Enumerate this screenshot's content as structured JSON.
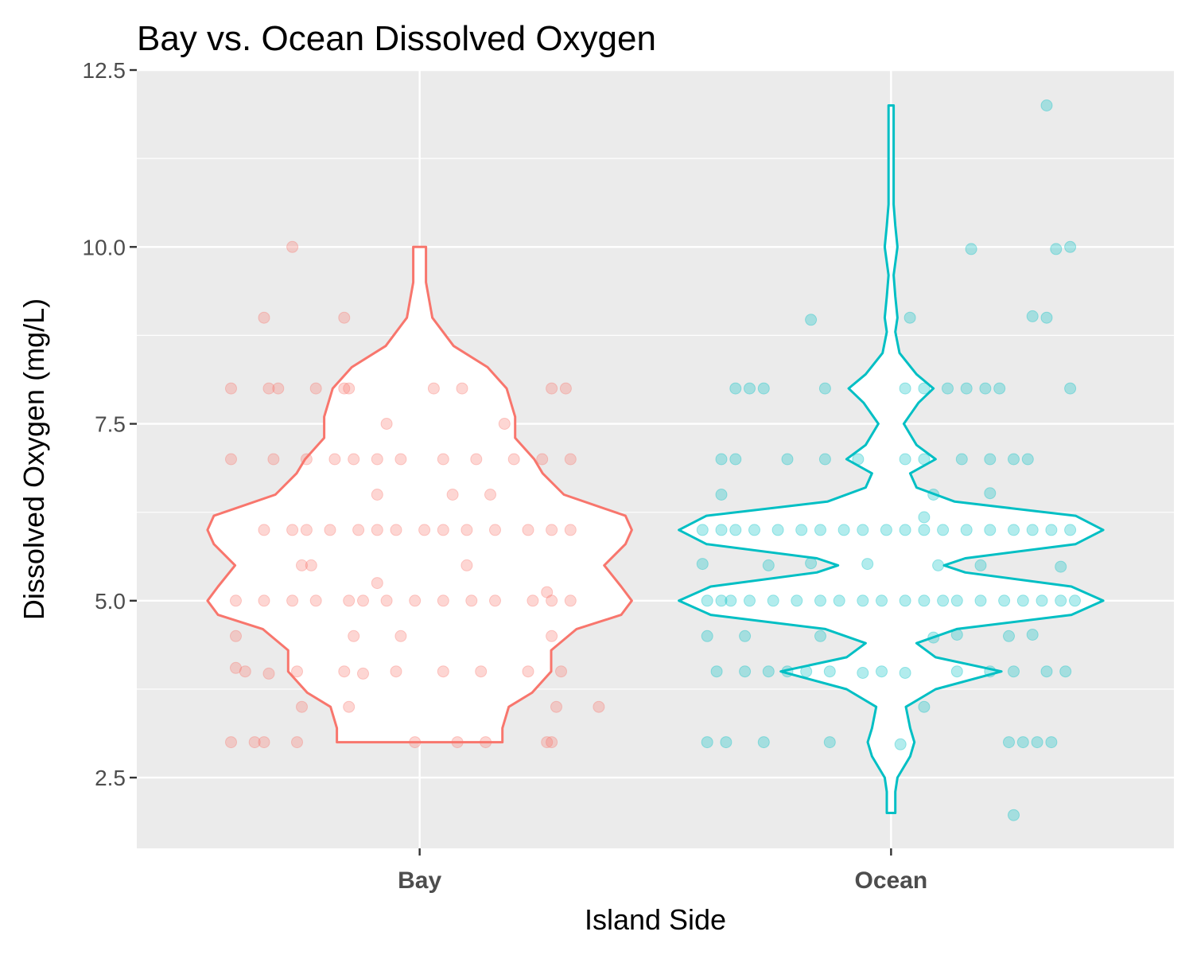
{
  "chart_data": {
    "type": "violin",
    "title": "Bay vs. Ocean Dissolved Oxygen",
    "xlabel": "Island Side",
    "ylabel": "Dissolved Oxygen (mg/L)",
    "categories": [
      "Bay",
      "Ocean"
    ],
    "ylim": [
      1.5,
      12.5
    ],
    "yticks": [
      2.5,
      5.0,
      7.5,
      10.0,
      12.5
    ],
    "ytick_labels": [
      "2.5",
      "5.0",
      "7.5",
      "10.0",
      "12.5"
    ],
    "grid": true,
    "colors": {
      "Bay": "#F8766D",
      "Ocean": "#00BFC4",
      "panel": "#EBEBEB",
      "grid": "#FFFFFF"
    },
    "point_alpha": 0.3,
    "series": [
      {
        "name": "Bay",
        "violin_range": [
          3.0,
          10.0
        ],
        "violin_density": [
          [
            3.0,
            0.39
          ],
          [
            3.2,
            0.39
          ],
          [
            3.5,
            0.42
          ],
          [
            3.7,
            0.53
          ],
          [
            4.0,
            0.62
          ],
          [
            4.3,
            0.62
          ],
          [
            4.6,
            0.74
          ],
          [
            4.8,
            0.95
          ],
          [
            5.0,
            1.0
          ],
          [
            5.2,
            0.95
          ],
          [
            5.5,
            0.87
          ],
          [
            5.8,
            0.97
          ],
          [
            6.0,
            1.0
          ],
          [
            6.2,
            0.97
          ],
          [
            6.5,
            0.68
          ],
          [
            6.8,
            0.58
          ],
          [
            7.0,
            0.54
          ],
          [
            7.3,
            0.45
          ],
          [
            7.6,
            0.45
          ],
          [
            8.0,
            0.41
          ],
          [
            8.3,
            0.32
          ],
          [
            8.6,
            0.16
          ],
          [
            9.0,
            0.06
          ],
          [
            9.5,
            0.03
          ],
          [
            10.0,
            0.03
          ]
        ],
        "points": [
          {
            "x": -0.4,
            "y": 3.0
          },
          {
            "x": -0.35,
            "y": 3.0
          },
          {
            "x": -0.33,
            "y": 3.0
          },
          {
            "x": -0.26,
            "y": 3.0
          },
          {
            "x": -0.01,
            "y": 3.0
          },
          {
            "x": 0.08,
            "y": 3.0
          },
          {
            "x": 0.14,
            "y": 3.0
          },
          {
            "x": 0.27,
            "y": 3.0
          },
          {
            "x": 0.28,
            "y": 3.0
          },
          {
            "x": -0.39,
            "y": 4.05
          },
          {
            "x": -0.37,
            "y": 4.0
          },
          {
            "x": -0.32,
            "y": 3.97
          },
          {
            "x": -0.26,
            "y": 4.0
          },
          {
            "x": -0.16,
            "y": 4.0
          },
          {
            "x": -0.12,
            "y": 3.97
          },
          {
            "x": -0.05,
            "y": 4.0
          },
          {
            "x": 0.05,
            "y": 4.0
          },
          {
            "x": 0.13,
            "y": 4.0
          },
          {
            "x": 0.23,
            "y": 4.0
          },
          {
            "x": 0.3,
            "y": 4.0
          },
          {
            "x": -0.39,
            "y": 5.0
          },
          {
            "x": -0.33,
            "y": 5.0
          },
          {
            "x": -0.27,
            "y": 5.0
          },
          {
            "x": -0.22,
            "y": 5.0
          },
          {
            "x": -0.15,
            "y": 5.0
          },
          {
            "x": -0.12,
            "y": 5.0
          },
          {
            "x": -0.07,
            "y": 5.0
          },
          {
            "x": -0.01,
            "y": 5.0
          },
          {
            "x": 0.05,
            "y": 5.0
          },
          {
            "x": 0.11,
            "y": 5.0
          },
          {
            "x": 0.16,
            "y": 5.0
          },
          {
            "x": 0.24,
            "y": 5.0
          },
          {
            "x": 0.28,
            "y": 5.0
          },
          {
            "x": 0.32,
            "y": 5.0
          },
          {
            "x": -0.33,
            "y": 6.0
          },
          {
            "x": -0.27,
            "y": 6.0
          },
          {
            "x": -0.24,
            "y": 6.0
          },
          {
            "x": -0.19,
            "y": 6.0
          },
          {
            "x": -0.13,
            "y": 6.0
          },
          {
            "x": -0.09,
            "y": 6.0
          },
          {
            "x": -0.05,
            "y": 6.0
          },
          {
            "x": 0.01,
            "y": 6.0
          },
          {
            "x": 0.05,
            "y": 6.0
          },
          {
            "x": 0.1,
            "y": 6.0
          },
          {
            "x": 0.16,
            "y": 6.0
          },
          {
            "x": 0.23,
            "y": 6.0
          },
          {
            "x": 0.28,
            "y": 6.0
          },
          {
            "x": 0.32,
            "y": 6.0
          },
          {
            "x": -0.4,
            "y": 7.0
          },
          {
            "x": -0.31,
            "y": 7.0
          },
          {
            "x": -0.24,
            "y": 7.0
          },
          {
            "x": -0.18,
            "y": 7.0
          },
          {
            "x": -0.14,
            "y": 7.0
          },
          {
            "x": -0.09,
            "y": 7.0
          },
          {
            "x": -0.04,
            "y": 7.0
          },
          {
            "x": 0.05,
            "y": 7.0
          },
          {
            "x": 0.12,
            "y": 7.0
          },
          {
            "x": 0.2,
            "y": 7.0
          },
          {
            "x": 0.26,
            "y": 7.0
          },
          {
            "x": 0.32,
            "y": 7.0
          },
          {
            "x": -0.4,
            "y": 8.0
          },
          {
            "x": -0.32,
            "y": 8.0
          },
          {
            "x": -0.3,
            "y": 8.0
          },
          {
            "x": -0.22,
            "y": 8.0
          },
          {
            "x": -0.16,
            "y": 8.0
          },
          {
            "x": -0.15,
            "y": 8.0
          },
          {
            "x": 0.03,
            "y": 8.0
          },
          {
            "x": 0.09,
            "y": 8.0
          },
          {
            "x": 0.28,
            "y": 8.0
          },
          {
            "x": 0.31,
            "y": 8.0
          },
          {
            "x": -0.33,
            "y": 9.0
          },
          {
            "x": -0.16,
            "y": 9.0
          },
          {
            "x": -0.27,
            "y": 10.0
          },
          {
            "x": -0.25,
            "y": 3.5
          },
          {
            "x": -0.15,
            "y": 3.5
          },
          {
            "x": 0.29,
            "y": 3.5
          },
          {
            "x": 0.38,
            "y": 3.5
          },
          {
            "x": -0.39,
            "y": 4.5
          },
          {
            "x": -0.14,
            "y": 4.5
          },
          {
            "x": -0.04,
            "y": 4.5
          },
          {
            "x": 0.28,
            "y": 4.5
          },
          {
            "x": -0.25,
            "y": 5.5
          },
          {
            "x": -0.23,
            "y": 5.5
          },
          {
            "x": 0.1,
            "y": 5.5
          },
          {
            "x": -0.09,
            "y": 6.5
          },
          {
            "x": 0.07,
            "y": 6.5
          },
          {
            "x": 0.15,
            "y": 6.5
          },
          {
            "x": -0.07,
            "y": 7.5
          },
          {
            "x": 0.18,
            "y": 7.5
          },
          {
            "x": -0.09,
            "y": 5.25
          },
          {
            "x": 0.27,
            "y": 5.12
          }
        ]
      },
      {
        "name": "Ocean",
        "violin_range": [
          2.0,
          12.0
        ],
        "violin_density": [
          [
            2.0,
            0.02
          ],
          [
            2.3,
            0.02
          ],
          [
            2.5,
            0.03
          ],
          [
            2.8,
            0.09
          ],
          [
            3.0,
            0.11
          ],
          [
            3.2,
            0.09
          ],
          [
            3.5,
            0.07
          ],
          [
            3.75,
            0.21
          ],
          [
            4.0,
            0.52
          ],
          [
            4.2,
            0.21
          ],
          [
            4.4,
            0.12
          ],
          [
            4.6,
            0.31
          ],
          [
            4.8,
            0.85
          ],
          [
            5.0,
            1.0
          ],
          [
            5.2,
            0.85
          ],
          [
            5.4,
            0.35
          ],
          [
            5.5,
            0.25
          ],
          [
            5.6,
            0.35
          ],
          [
            5.8,
            0.87
          ],
          [
            6.0,
            1.0
          ],
          [
            6.2,
            0.87
          ],
          [
            6.4,
            0.3
          ],
          [
            6.6,
            0.12
          ],
          [
            6.8,
            0.09
          ],
          [
            7.0,
            0.21
          ],
          [
            7.2,
            0.12
          ],
          [
            7.5,
            0.06
          ],
          [
            7.8,
            0.13
          ],
          [
            8.0,
            0.2
          ],
          [
            8.2,
            0.12
          ],
          [
            8.5,
            0.04
          ],
          [
            8.8,
            0.02
          ],
          [
            9.0,
            0.03
          ],
          [
            9.3,
            0.02
          ],
          [
            9.6,
            0.01
          ],
          [
            10.0,
            0.03
          ],
          [
            10.3,
            0.02
          ],
          [
            10.6,
            0.01
          ],
          [
            11.0,
            0.01
          ],
          [
            11.5,
            0.01
          ],
          [
            12.0,
            0.01
          ]
        ],
        "points": [
          {
            "x": -0.39,
            "y": 3.0
          },
          {
            "x": -0.35,
            "y": 3.0
          },
          {
            "x": -0.27,
            "y": 3.0
          },
          {
            "x": -0.13,
            "y": 3.0
          },
          {
            "x": 0.02,
            "y": 2.97
          },
          {
            "x": 0.25,
            "y": 3.0
          },
          {
            "x": 0.28,
            "y": 3.0
          },
          {
            "x": 0.31,
            "y": 3.0
          },
          {
            "x": 0.34,
            "y": 3.0
          },
          {
            "x": -0.37,
            "y": 4.0
          },
          {
            "x": -0.31,
            "y": 4.0
          },
          {
            "x": -0.26,
            "y": 4.0
          },
          {
            "x": -0.22,
            "y": 4.0
          },
          {
            "x": -0.18,
            "y": 4.0
          },
          {
            "x": -0.13,
            "y": 4.0
          },
          {
            "x": -0.06,
            "y": 3.98
          },
          {
            "x": -0.02,
            "y": 4.0
          },
          {
            "x": 0.03,
            "y": 3.98
          },
          {
            "x": 0.14,
            "y": 4.0
          },
          {
            "x": 0.21,
            "y": 4.0
          },
          {
            "x": 0.26,
            "y": 4.0
          },
          {
            "x": 0.33,
            "y": 4.0
          },
          {
            "x": 0.37,
            "y": 4.0
          },
          {
            "x": -0.39,
            "y": 5.0
          },
          {
            "x": -0.36,
            "y": 5.0
          },
          {
            "x": -0.34,
            "y": 5.0
          },
          {
            "x": -0.3,
            "y": 5.0
          },
          {
            "x": -0.25,
            "y": 5.0
          },
          {
            "x": -0.2,
            "y": 5.0
          },
          {
            "x": -0.15,
            "y": 5.0
          },
          {
            "x": -0.11,
            "y": 5.0
          },
          {
            "x": -0.06,
            "y": 5.0
          },
          {
            "x": -0.02,
            "y": 5.0
          },
          {
            "x": 0.03,
            "y": 5.0
          },
          {
            "x": 0.07,
            "y": 5.0
          },
          {
            "x": 0.11,
            "y": 5.0
          },
          {
            "x": 0.14,
            "y": 5.0
          },
          {
            "x": 0.19,
            "y": 5.0
          },
          {
            "x": 0.24,
            "y": 5.0
          },
          {
            "x": 0.28,
            "y": 5.0
          },
          {
            "x": 0.32,
            "y": 5.0
          },
          {
            "x": 0.36,
            "y": 5.0
          },
          {
            "x": 0.39,
            "y": 5.0
          },
          {
            "x": -0.4,
            "y": 6.0
          },
          {
            "x": -0.36,
            "y": 6.0
          },
          {
            "x": -0.33,
            "y": 6.0
          },
          {
            "x": -0.29,
            "y": 6.0
          },
          {
            "x": -0.24,
            "y": 6.0
          },
          {
            "x": -0.19,
            "y": 6.0
          },
          {
            "x": -0.15,
            "y": 6.0
          },
          {
            "x": -0.1,
            "y": 6.0
          },
          {
            "x": -0.06,
            "y": 6.0
          },
          {
            "x": -0.01,
            "y": 6.0
          },
          {
            "x": 0.03,
            "y": 6.0
          },
          {
            "x": 0.07,
            "y": 6.0
          },
          {
            "x": 0.11,
            "y": 6.0
          },
          {
            "x": 0.16,
            "y": 6.0
          },
          {
            "x": 0.21,
            "y": 6.0
          },
          {
            "x": 0.26,
            "y": 6.0
          },
          {
            "x": 0.3,
            "y": 6.0
          },
          {
            "x": 0.34,
            "y": 6.0
          },
          {
            "x": 0.38,
            "y": 6.0
          },
          {
            "x": -0.36,
            "y": 7.0
          },
          {
            "x": -0.33,
            "y": 7.0
          },
          {
            "x": -0.22,
            "y": 7.0
          },
          {
            "x": -0.14,
            "y": 7.0
          },
          {
            "x": -0.07,
            "y": 7.0
          },
          {
            "x": 0.03,
            "y": 7.0
          },
          {
            "x": 0.07,
            "y": 7.0
          },
          {
            "x": 0.15,
            "y": 7.0
          },
          {
            "x": 0.21,
            "y": 7.0
          },
          {
            "x": 0.26,
            "y": 7.0
          },
          {
            "x": 0.29,
            "y": 7.0
          },
          {
            "x": -0.33,
            "y": 8.0
          },
          {
            "x": -0.3,
            "y": 8.0
          },
          {
            "x": -0.27,
            "y": 8.0
          },
          {
            "x": -0.14,
            "y": 8.0
          },
          {
            "x": 0.03,
            "y": 8.0
          },
          {
            "x": 0.07,
            "y": 8.0
          },
          {
            "x": 0.12,
            "y": 8.0
          },
          {
            "x": 0.16,
            "y": 8.0
          },
          {
            "x": 0.2,
            "y": 8.0
          },
          {
            "x": 0.23,
            "y": 8.0
          },
          {
            "x": 0.38,
            "y": 8.0
          },
          {
            "x": -0.17,
            "y": 8.97
          },
          {
            "x": 0.04,
            "y": 9.0
          },
          {
            "x": 0.3,
            "y": 9.02
          },
          {
            "x": 0.33,
            "y": 9.0
          },
          {
            "x": 0.17,
            "y": 9.97
          },
          {
            "x": 0.35,
            "y": 9.97
          },
          {
            "x": 0.38,
            "y": 10.0
          },
          {
            "x": 0.33,
            "y": 12.0
          },
          {
            "x": 0.26,
            "y": 1.97
          },
          {
            "x": -0.39,
            "y": 4.5
          },
          {
            "x": -0.31,
            "y": 4.5
          },
          {
            "x": -0.15,
            "y": 4.5
          },
          {
            "x": 0.14,
            "y": 4.52
          },
          {
            "x": 0.25,
            "y": 4.5
          },
          {
            "x": 0.3,
            "y": 4.52
          },
          {
            "x": -0.4,
            "y": 5.52
          },
          {
            "x": -0.26,
            "y": 5.5
          },
          {
            "x": -0.17,
            "y": 5.53
          },
          {
            "x": -0.05,
            "y": 5.52
          },
          {
            "x": 0.1,
            "y": 5.5
          },
          {
            "x": 0.19,
            "y": 5.5
          },
          {
            "x": 0.36,
            "y": 5.48
          },
          {
            "x": -0.36,
            "y": 6.5
          },
          {
            "x": 0.09,
            "y": 6.5
          },
          {
            "x": 0.21,
            "y": 6.52
          },
          {
            "x": 0.07,
            "y": 6.18
          },
          {
            "x": 0.07,
            "y": 3.5
          },
          {
            "x": 0.09,
            "y": 4.48
          }
        ]
      }
    ]
  }
}
